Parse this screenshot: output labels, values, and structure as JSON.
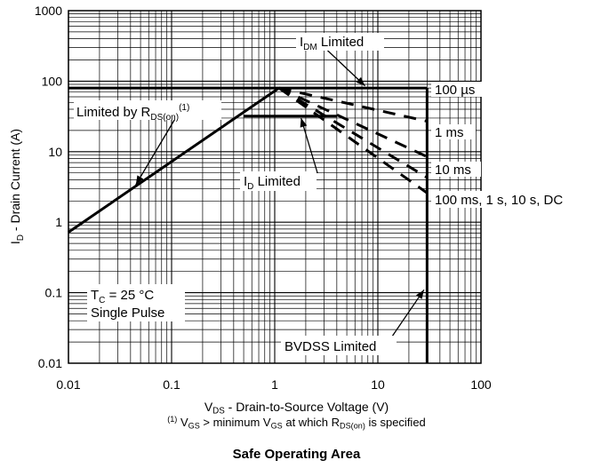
{
  "chart_data": {
    "type": "line",
    "title": "Safe Operating Area",
    "x_scale": "log",
    "y_scale": "log",
    "xlim": [
      0.01,
      100
    ],
    "ylim": [
      0.01,
      1000
    ],
    "grid": true,
    "x_ticks": [
      "0.01",
      "0.1",
      "1",
      "10",
      "100"
    ],
    "y_ticks": [
      "0.01",
      "0.1",
      "1",
      "10",
      "100",
      "1000"
    ],
    "xlabel": {
      "main": "V",
      "sub": "DS",
      "rest": " - Drain-to-Source Voltage (V)"
    },
    "ylabel": {
      "main": "I",
      "sub": "D",
      "rest": " - Drain Current (A)"
    },
    "footnote": {
      "sup": "(1)",
      "a": " V",
      "a_sub": "GS",
      "b": " > minimum V",
      "b_sub": "GS",
      "c": " at which R",
      "c_sub": "DS(on)",
      "d": " is specified"
    },
    "series": [
      {
        "name": "Limited by RDS(on)",
        "style": "solid",
        "x": [
          0.01,
          1.1
        ],
        "y": [
          0.72,
          80
        ]
      },
      {
        "name": "IDM Limited",
        "style": "solid",
        "x": [
          0.01,
          30
        ],
        "y": [
          80,
          80
        ]
      },
      {
        "name": "BVDSS Limited",
        "style": "solid",
        "x": [
          30,
          30
        ],
        "y": [
          0.01,
          80
        ]
      },
      {
        "name": "ID Limited",
        "style": "solid",
        "x": [
          0.5,
          4
        ],
        "y": [
          32,
          32
        ]
      },
      {
        "name": "100 µs",
        "style": "dash",
        "x": [
          1.1,
          30
        ],
        "y": [
          80,
          27
        ]
      },
      {
        "name": "1 ms",
        "style": "dash",
        "x": [
          1.1,
          30
        ],
        "y": [
          80,
          8.5
        ]
      },
      {
        "name": "10 ms",
        "style": "dash",
        "x": [
          1.1,
          30
        ],
        "y": [
          80,
          4.3
        ]
      },
      {
        "name": "100 ms, 1 s, 10 s, DC",
        "style": "dash",
        "x": [
          1.1,
          30
        ],
        "y": [
          80,
          2.6
        ]
      }
    ],
    "annotations": {
      "idm": {
        "main": "I",
        "sub": "DM",
        "rest": " Limited"
      },
      "rds": {
        "main": "Limited by R",
        "sub": "DS(on)",
        "sup": "(1)"
      },
      "id": {
        "main": "I",
        "sub": "D",
        "rest": " Limited"
      },
      "bvdss": "BVDSS Limited",
      "tc": {
        "main": "T",
        "sub": "C",
        "rest": " = 25 °C"
      },
      "pulse": "Single Pulse",
      "curve_labels": [
        "100 µs",
        "1 ms",
        "10 ms",
        "100 ms, 1 s, 10 s, DC"
      ]
    }
  }
}
